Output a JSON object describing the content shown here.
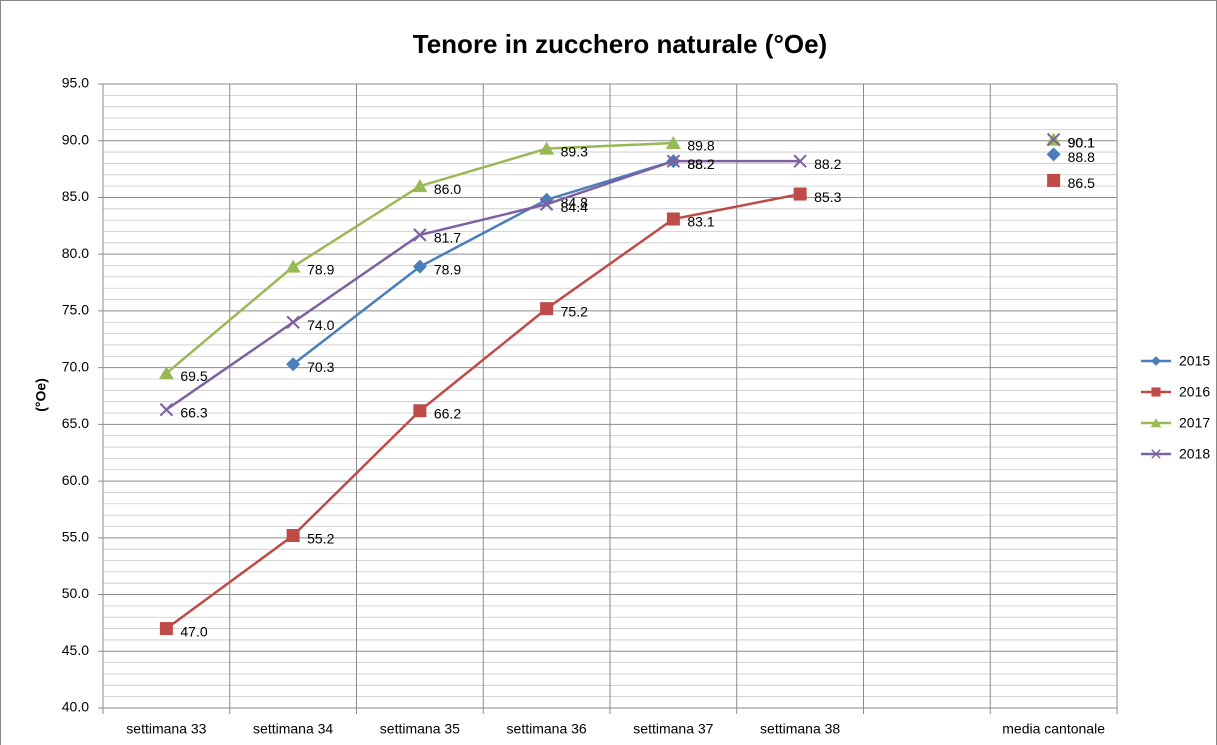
{
  "chart_data": {
    "type": "line",
    "title": "Tenore in zucchero naturale (°Oe)",
    "y_label": "(°Oe)",
    "categories": [
      "settimana 33",
      "settimana 34",
      "settimana 35",
      "settimana 36",
      "settimana 37",
      "settimana 38",
      null,
      "media cantonale"
    ],
    "series": [
      {
        "name": "2015",
        "color": "#4a7ebb",
        "marker": "diamond",
        "values": [
          null,
          70.3,
          78.9,
          84.8,
          88.2,
          null,
          null,
          88.8
        ],
        "value_labels": [
          null,
          "70.3",
          "78.9",
          "84.8",
          "88.2",
          null,
          null,
          "88.8"
        ]
      },
      {
        "name": "2016",
        "color": "#be4b48",
        "marker": "square",
        "values": [
          47.0,
          55.2,
          66.2,
          75.2,
          83.1,
          85.3,
          null,
          86.5
        ],
        "value_labels": [
          "47.0",
          "55.2",
          "66.2",
          "75.2",
          "83.1",
          "85.3",
          null,
          "86.5"
        ]
      },
      {
        "name": "2017",
        "color": "#98b954",
        "marker": "triangle",
        "values": [
          69.5,
          78.9,
          86.0,
          89.3,
          89.8,
          null,
          null,
          90.1
        ],
        "value_labels": [
          "69.5",
          "78.9",
          "86.0",
          "89.3",
          "89.8",
          null,
          null,
          "90.1"
        ]
      },
      {
        "name": "2018",
        "color": "#7d60a0",
        "marker": "x",
        "values": [
          66.3,
          74.0,
          81.7,
          84.4,
          88.2,
          88.2,
          null,
          90.1
        ],
        "value_labels": [
          "66.3",
          "74.0",
          "81.7",
          "84.4",
          "88.2",
          "88.2",
          null,
          "90.1"
        ]
      }
    ],
    "ylim": [
      40,
      95
    ],
    "yticks": [
      {
        "value": 40,
        "label": "40.0"
      },
      {
        "value": 45,
        "label": "45.0"
      },
      {
        "value": 50,
        "label": "50.0"
      },
      {
        "value": 55,
        "label": "55.0"
      },
      {
        "value": 60,
        "label": "60.0"
      },
      {
        "value": 65,
        "label": "65.0"
      },
      {
        "value": 70,
        "label": "70.0"
      },
      {
        "value": 75,
        "label": "75.0"
      },
      {
        "value": 80,
        "label": "80.0"
      },
      {
        "value": 85,
        "label": "85.0"
      },
      {
        "value": 90,
        "label": "90.0"
      },
      {
        "value": 95,
        "label": "95.0"
      }
    ],
    "grid": true,
    "minor_grid": true,
    "legend": "right"
  }
}
